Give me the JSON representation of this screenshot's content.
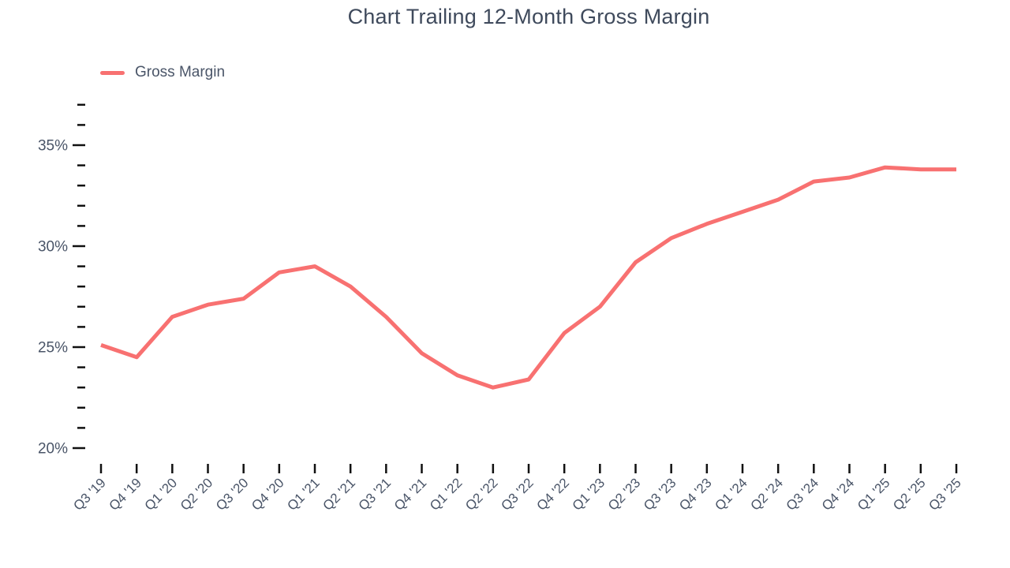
{
  "chart": {
    "title": "Chart Trailing 12-Month Gross Margin"
  },
  "colors": {
    "line": "#F87171",
    "title_text": "#3F4A5C",
    "axis_text": "#4A5568",
    "tick": "#111111"
  },
  "chart_data": {
    "type": "line",
    "title": "Chart Trailing 12-Month Gross Margin",
    "categories": [
      "Q3 '19",
      "Q4 '19",
      "Q1 '20",
      "Q2 '20",
      "Q3 '20",
      "Q4 '20",
      "Q1 '21",
      "Q2 '21",
      "Q3 '21",
      "Q4 '21",
      "Q1 '22",
      "Q2 '22",
      "Q3 '22",
      "Q4 '22",
      "Q1 '23",
      "Q2 '23",
      "Q3 '23",
      "Q4 '23",
      "Q1 '24",
      "Q2 '24",
      "Q3 '24",
      "Q4 '24",
      "Q1 '25",
      "Q2 '25",
      "Q3 '25"
    ],
    "series": [
      {
        "name": "Gross Margin",
        "color": "#F87171",
        "values": [
          25.1,
          24.5,
          26.5,
          27.1,
          27.4,
          28.7,
          29.0,
          28.0,
          26.5,
          24.7,
          23.6,
          23.0,
          23.4,
          25.7,
          27.0,
          29.2,
          30.4,
          31.1,
          31.7,
          32.3,
          33.2,
          33.4,
          33.9,
          33.8,
          33.8
        ]
      }
    ],
    "xlabel": "",
    "ylabel": "",
    "ylim": [
      20,
      37
    ],
    "ytick_minor_step": 1,
    "ytick_major_values": [
      20,
      25,
      30,
      35
    ],
    "ytick_major_labels": [
      "20%",
      "25%",
      "30%",
      "35%"
    ],
    "x_label_rotation_deg": -45,
    "grid": false,
    "legend_position": "top-left"
  }
}
